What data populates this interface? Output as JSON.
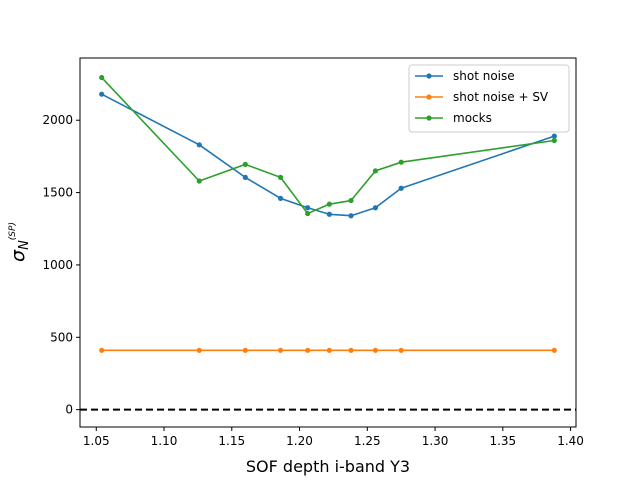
{
  "chart_data": {
    "type": "line",
    "title": "",
    "xlabel": "SOF depth i-band Y3",
    "ylabel": "σ_N^(SP)",
    "ylabel_main": "σ",
    "ylabel_sub": "N",
    "ylabel_sup": "(SP)",
    "xlim": [
      1.038,
      1.404
    ],
    "ylim": [
      -120,
      2430
    ],
    "x_ticks": [
      1.05,
      1.1,
      1.15,
      1.2,
      1.25,
      1.3,
      1.35,
      1.4
    ],
    "x_tick_labels": [
      "1.05",
      "1.10",
      "1.15",
      "1.20",
      "1.25",
      "1.30",
      "1.35",
      "1.40"
    ],
    "y_ticks": [
      0,
      500,
      1000,
      1500,
      2000
    ],
    "y_tick_labels": [
      "0",
      "500",
      "1000",
      "1500",
      "2000"
    ],
    "grid": false,
    "legend_position": "top-right",
    "reference_line": {
      "y": 0,
      "style": "dashed",
      "color": "#000000"
    },
    "series": [
      {
        "name": "shot noise",
        "color": "#1f77b4",
        "x": [
          1.054,
          1.126,
          1.16,
          1.186,
          1.206,
          1.222,
          1.238,
          1.256,
          1.275,
          1.388
        ],
        "y": [
          2180,
          1830,
          1605,
          1460,
          1395,
          1350,
          1340,
          1395,
          1530,
          1890
        ]
      },
      {
        "name": "shot noise + SV",
        "color": "#ff7f0e",
        "x": [
          1.054,
          1.126,
          1.16,
          1.186,
          1.206,
          1.222,
          1.238,
          1.256,
          1.275,
          1.388
        ],
        "y": [
          410,
          410,
          410,
          410,
          410,
          410,
          410,
          410,
          410,
          410
        ]
      },
      {
        "name": "mocks",
        "color": "#2ca02c",
        "x": [
          1.054,
          1.126,
          1.16,
          1.186,
          1.206,
          1.222,
          1.238,
          1.256,
          1.275,
          1.388
        ],
        "y": [
          2295,
          1580,
          1695,
          1605,
          1355,
          1420,
          1445,
          1650,
          1710,
          1860
        ]
      }
    ]
  }
}
